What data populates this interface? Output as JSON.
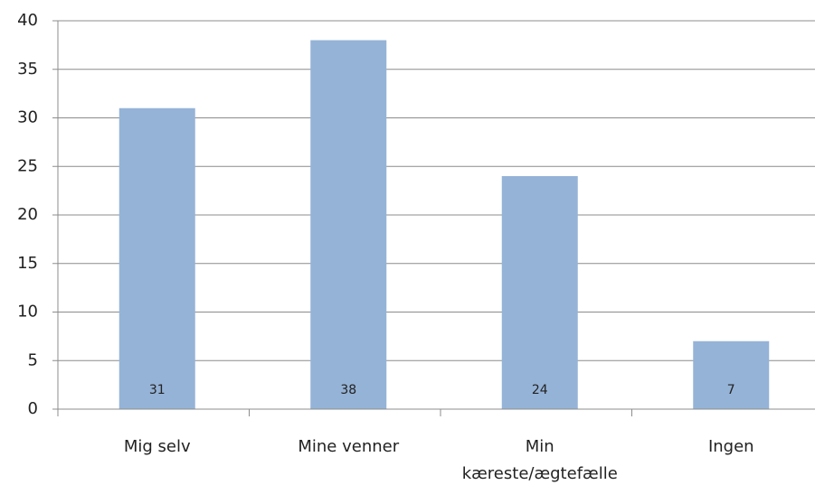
{
  "chart_data": {
    "type": "bar",
    "categories": [
      "Mig selv",
      "Mine venner",
      "Min kæreste/ægtefælle",
      "Ingen"
    ],
    "values": [
      31,
      38,
      24,
      7
    ],
    "color": "#95b3d7",
    "ylim": [
      0,
      40
    ],
    "yticks": [
      0,
      5,
      10,
      15,
      20,
      25,
      30,
      35,
      40
    ],
    "grid": true
  }
}
